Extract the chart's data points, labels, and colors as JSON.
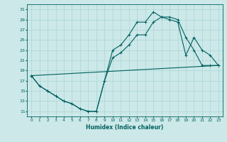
{
  "xlabel": "Humidex (Indice chaleur)",
  "bg_color": "#cce8e8",
  "grid_color": "#aad4d4",
  "line_color": "#006060",
  "xlim": [
    -0.5,
    23.5
  ],
  "ylim": [
    10,
    32
  ],
  "xticks": [
    0,
    1,
    2,
    3,
    4,
    5,
    6,
    7,
    8,
    9,
    10,
    11,
    12,
    13,
    14,
    15,
    16,
    17,
    18,
    19,
    20,
    21,
    22,
    23
  ],
  "yticks": [
    11,
    13,
    15,
    17,
    19,
    21,
    23,
    25,
    27,
    29,
    31
  ],
  "series": [
    {
      "x": [
        0,
        1,
        2,
        3,
        4,
        5,
        6,
        7,
        8,
        9,
        10,
        11,
        12,
        13,
        14,
        15,
        16,
        17,
        18,
        19,
        20,
        21,
        22,
        23
      ],
      "y": [
        18,
        16,
        15,
        14,
        13,
        12.5,
        11.5,
        11,
        11,
        17,
        23,
        24,
        26,
        28.5,
        28.5,
        30.5,
        29.5,
        29.5,
        29,
        25.5,
        23,
        20,
        20,
        20
      ]
    },
    {
      "x": [
        0,
        1,
        2,
        3,
        4,
        5,
        6,
        7,
        8,
        9,
        10,
        11,
        12,
        13,
        14,
        15,
        16,
        17,
        18,
        19,
        20,
        21,
        22,
        23
      ],
      "y": [
        18,
        16,
        15,
        14,
        13,
        12.5,
        11.5,
        11,
        11,
        17,
        21.5,
        22.5,
        24,
        26,
        26,
        28.5,
        29.5,
        29,
        28.5,
        22,
        25.5,
        23,
        22,
        20
      ]
    },
    {
      "x": [
        0,
        23
      ],
      "y": [
        18,
        20
      ]
    }
  ]
}
